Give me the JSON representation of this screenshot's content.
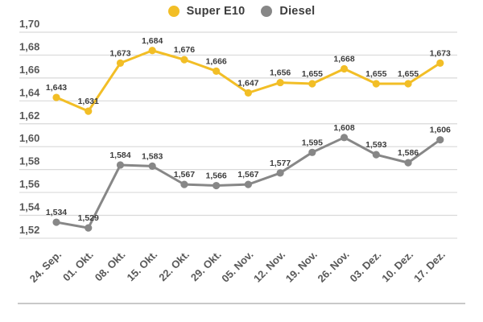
{
  "legend": {
    "items": [
      {
        "name": "Super E10",
        "color": "#F2BE26"
      },
      {
        "name": "Diesel",
        "color": "#878787"
      }
    ]
  },
  "chart_data": {
    "type": "line",
    "title": "",
    "xlabel": "",
    "ylabel": "",
    "x": [
      "24. Sep.",
      "01. Okt.",
      "08. Okt.",
      "15. Okt.",
      "22. Okt.",
      "29. Okt.",
      "05. Nov.",
      "12. Nov.",
      "19. Nov.",
      "26. Nov.",
      "03. Dez.",
      "10. Dez.",
      "17. Dez."
    ],
    "series": [
      {
        "name": "Super E10",
        "color": "#F2BE26",
        "values": [
          1.643,
          1.631,
          1.673,
          1.684,
          1.676,
          1.666,
          1.647,
          1.656,
          1.655,
          1.668,
          1.655,
          1.655,
          1.673
        ]
      },
      {
        "name": "Diesel",
        "color": "#878787",
        "values": [
          1.534,
          1.529,
          1.584,
          1.583,
          1.567,
          1.566,
          1.567,
          1.577,
          1.595,
          1.608,
          1.593,
          1.586,
          1.606
        ]
      }
    ],
    "ylim": [
      1.52,
      1.7
    ],
    "ytick_step": 0.02,
    "ytick_labels": [
      "1,70",
      "1,68",
      "1,66",
      "1,64",
      "1,62",
      "1,60",
      "1,58",
      "1,56",
      "1,54",
      "1,52"
    ],
    "decimal_separator": ",",
    "grid": "horizontal",
    "legend_position": "top-center",
    "value_labels": true
  },
  "colors": {
    "background": "#FFFFFF",
    "gridline": "#D9D9D9",
    "axis_text": "#585858",
    "value_text": "#3D3D3D",
    "separator": "#C9C9C9",
    "legend_text": "#3C3C3C"
  }
}
